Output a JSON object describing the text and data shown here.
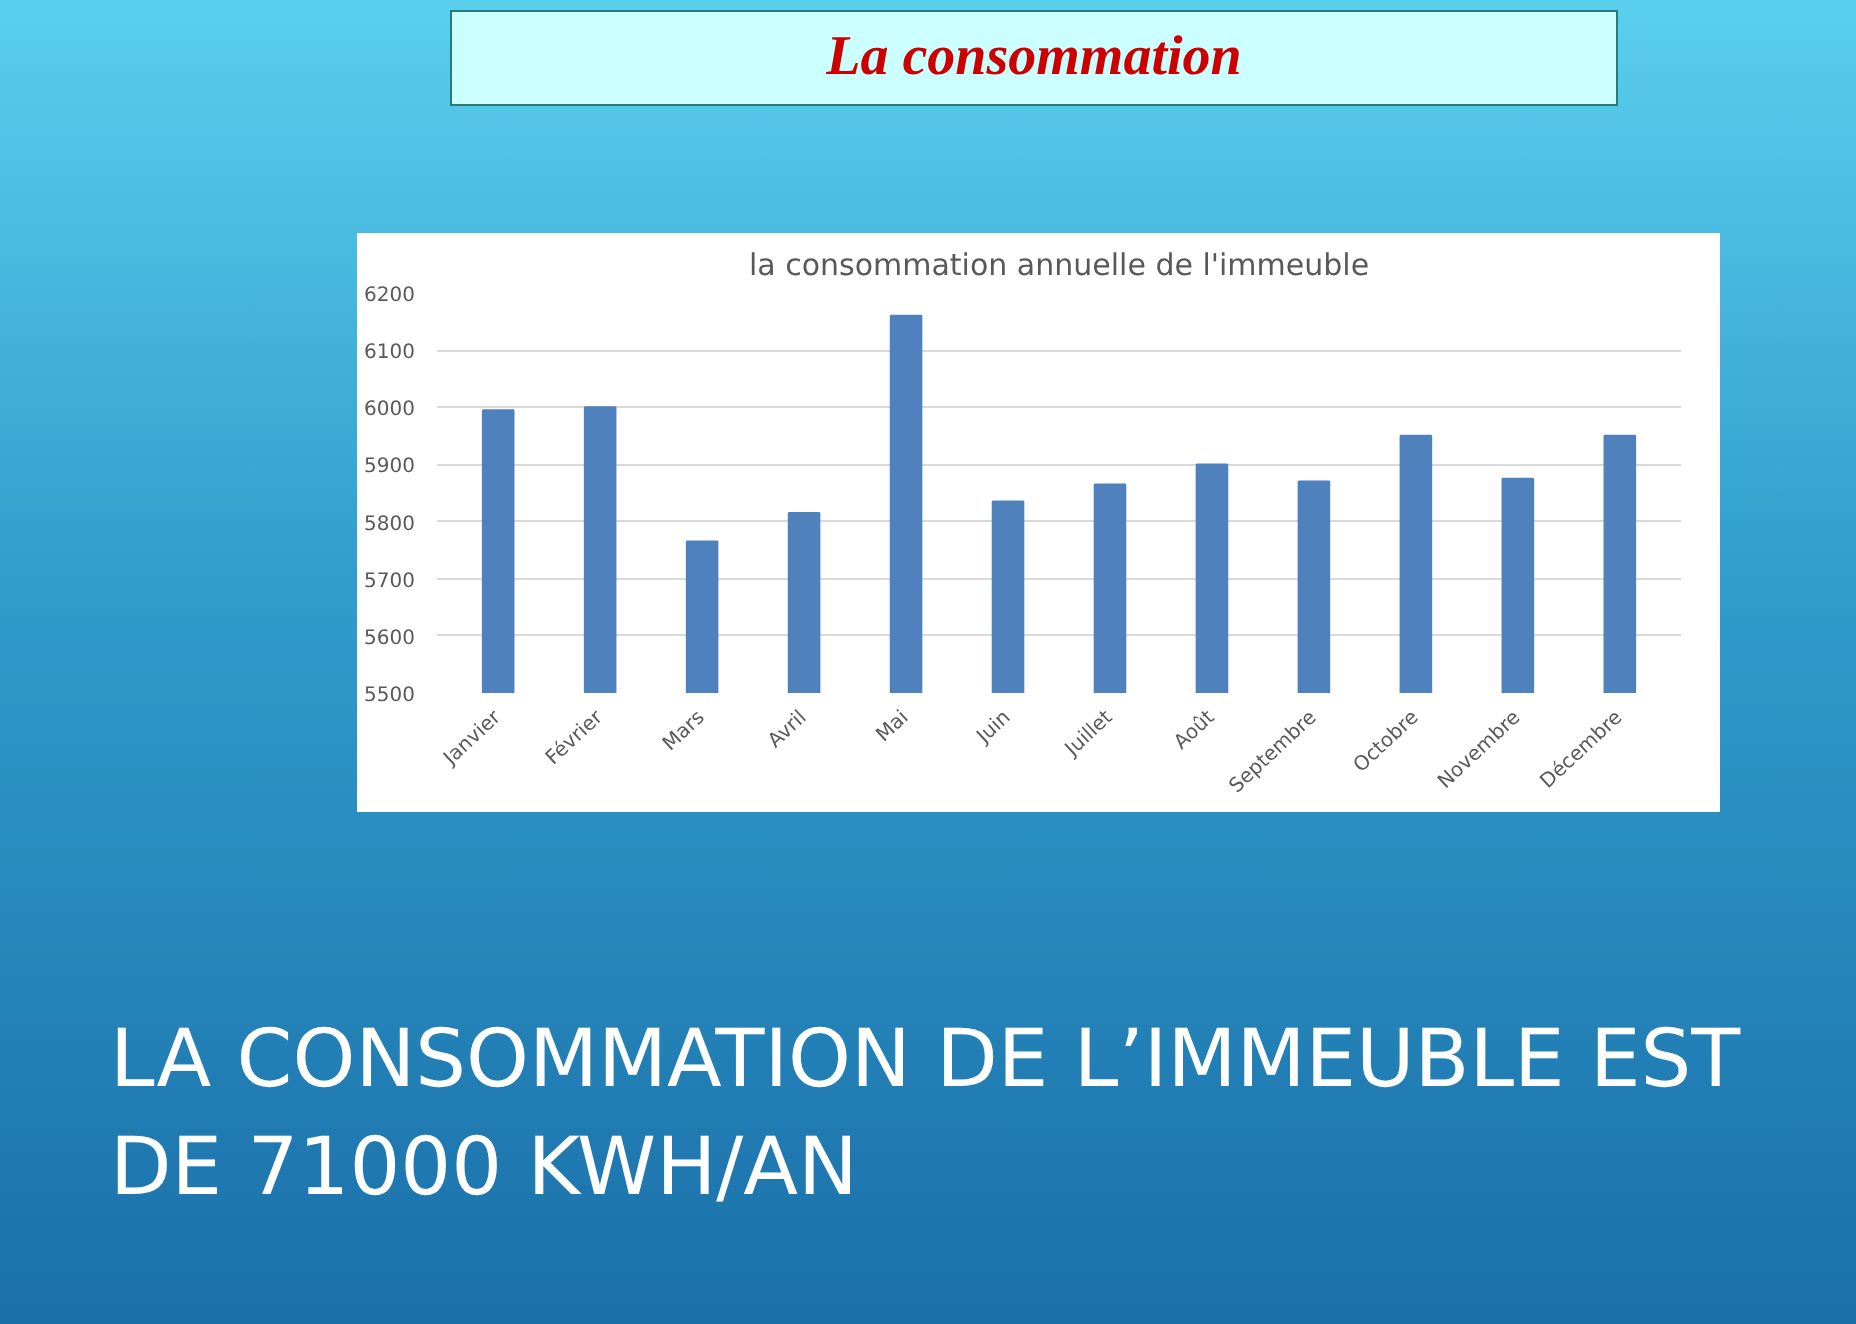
{
  "chart_data": {
    "type": "bar",
    "title": "la consommation annuelle de l'immeuble",
    "categories": [
      "Janvier",
      "Février",
      "Mars",
      "Avril",
      "Mai",
      "Juin",
      "Juillet",
      "Août",
      "Septembre",
      "Octobre",
      "Novembre",
      "Décembre"
    ],
    "values": [
      5995,
      6000,
      5765,
      5815,
      6160,
      5835,
      5865,
      5900,
      5870,
      5950,
      5875,
      5950
    ],
    "color": "#4f81bd",
    "ylim": [
      5500,
      6200
    ],
    "yticks": [
      5500,
      5600,
      5700,
      5800,
      5900,
      6000,
      6100,
      6200
    ],
    "grid": "y",
    "annotations": [
      "La consommation",
      "LA CONSOMMATION DE L’IMMEUBLE EST DE 71000 KWH/AN"
    ]
  }
}
